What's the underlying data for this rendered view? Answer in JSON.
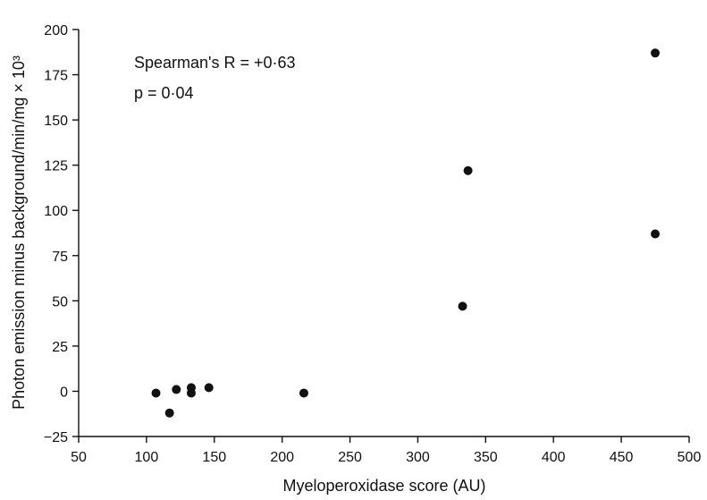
{
  "chart_data": {
    "type": "scatter",
    "xlabel": "Myeloperoxidase score (AU)",
    "ylabel": "Photon emission minus background/min/mg × 10³",
    "xlim": [
      50,
      500
    ],
    "ylim": [
      -25,
      200
    ],
    "xticks": [
      50,
      100,
      150,
      200,
      250,
      300,
      350,
      400,
      450,
      500
    ],
    "yticks": [
      -25,
      0,
      25,
      50,
      75,
      100,
      125,
      150,
      175,
      200
    ],
    "grid": false,
    "annotations": [
      "Spearman's R = +0·63",
      "p = 0·04"
    ],
    "series": [
      {
        "points": [
          {
            "x": 107,
            "y": -1
          },
          {
            "x": 117,
            "y": -12
          },
          {
            "x": 122,
            "y": 1
          },
          {
            "x": 133,
            "y": 2
          },
          {
            "x": 133,
            "y": -1
          },
          {
            "x": 146,
            "y": 2
          },
          {
            "x": 216,
            "y": -1
          },
          {
            "x": 333,
            "y": 47
          },
          {
            "x": 337,
            "y": 122
          },
          {
            "x": 475,
            "y": 87
          },
          {
            "x": 475,
            "y": 187
          }
        ]
      }
    ]
  }
}
